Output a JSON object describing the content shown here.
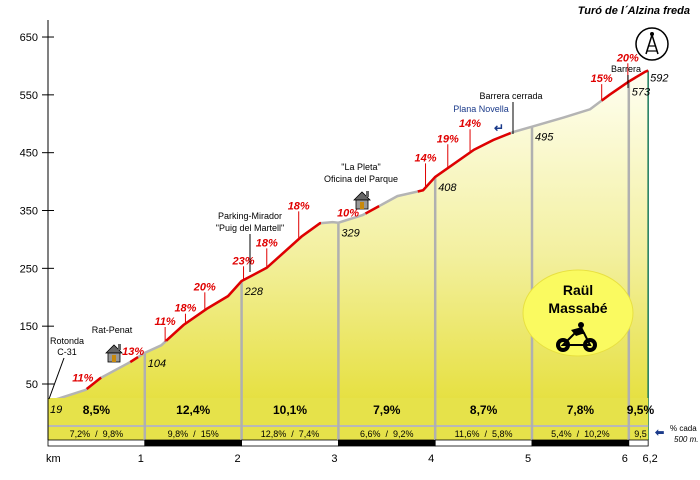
{
  "chart_data": {
    "type": "area",
    "title": "Turó de l´Alzina freda",
    "xlabel": "km",
    "ylabel": "",
    "xlim": [
      0,
      6.2
    ],
    "ylim": [
      50,
      650
    ],
    "y_ticks": [
      50,
      150,
      250,
      350,
      450,
      550,
      650
    ],
    "x_ticks": [
      {
        "v": 1,
        "label": "1"
      },
      {
        "v": 2,
        "label": "2"
      },
      {
        "v": 3,
        "label": "3"
      },
      {
        "v": 4,
        "label": "4"
      },
      {
        "v": 5,
        "label": "5"
      },
      {
        "v": 6,
        "label": "6"
      },
      {
        "v": 6.2,
        "label": "6,2"
      }
    ],
    "profile": [
      [
        0,
        19
      ],
      [
        0.39,
        40
      ],
      [
        0.54,
        60
      ],
      [
        0.85,
        88
      ],
      [
        1.0,
        104
      ],
      [
        1.17,
        117
      ],
      [
        1.4,
        152
      ],
      [
        1.64,
        180
      ],
      [
        1.86,
        202
      ],
      [
        2.0,
        228
      ],
      [
        2.26,
        251
      ],
      [
        2.62,
        305
      ],
      [
        2.81,
        328
      ],
      [
        2.94,
        330
      ],
      [
        3.0,
        329
      ],
      [
        3.25,
        342
      ],
      [
        3.61,
        375
      ],
      [
        3.875,
        385
      ],
      [
        4.0,
        408
      ],
      [
        4.4,
        455
      ],
      [
        4.6,
        472
      ],
      [
        4.81,
        486
      ],
      [
        5.0,
        495
      ],
      [
        5.33,
        511
      ],
      [
        5.6,
        525
      ],
      [
        5.8,
        550
      ],
      [
        6.0,
        573
      ],
      [
        6.17,
        590
      ],
      [
        6.2,
        592
      ]
    ],
    "steep_sections": [
      [
        0.4,
        0.55
      ],
      [
        0.85,
        0.93
      ],
      [
        1.22,
        2.82
      ],
      [
        3.28,
        3.42
      ],
      [
        3.82,
        4.78
      ],
      [
        5.72,
        6.2
      ]
    ],
    "km_elevations": [
      {
        "km": 0,
        "elev": "19"
      },
      {
        "km": 1,
        "elev": "104"
      },
      {
        "km": 2,
        "elev": "228"
      },
      {
        "km": 3,
        "elev": "329"
      },
      {
        "km": 4,
        "elev": "408"
      },
      {
        "km": 5,
        "elev": "495"
      },
      {
        "km": 6,
        "elev": "573"
      },
      {
        "km": 6.2,
        "elev": "592"
      }
    ],
    "grade_labels": [
      {
        "km": 0.36,
        "elev": 54,
        "label": "11%"
      },
      {
        "km": 0.88,
        "elev": 100,
        "label": "13%"
      },
      {
        "km": 1.21,
        "elev": 152,
        "label": "11%"
      },
      {
        "km": 1.42,
        "elev": 175,
        "label": "18%"
      },
      {
        "km": 1.62,
        "elev": 212,
        "label": "20%"
      },
      {
        "km": 2.02,
        "elev": 257,
        "label": "23%"
      },
      {
        "km": 2.26,
        "elev": 288,
        "label": "18%"
      },
      {
        "km": 2.59,
        "elev": 352,
        "label": "18%"
      },
      {
        "km": 3.1,
        "elev": 340,
        "label": "10%"
      },
      {
        "km": 3.9,
        "elev": 435,
        "label": "14%"
      },
      {
        "km": 4.13,
        "elev": 468,
        "label": "19%"
      },
      {
        "km": 4.36,
        "elev": 494,
        "label": "14%"
      },
      {
        "km": 5.72,
        "elev": 572,
        "label": "15%"
      },
      {
        "km": 5.99,
        "elev": 608,
        "label": "20%"
      }
    ],
    "segments": [
      {
        "from": 0,
        "to": 1,
        "avg": "8,5%",
        "halves": "7,2%  /  9,8%"
      },
      {
        "from": 1,
        "to": 2,
        "avg": "12,4%",
        "halves": "9,8%  /  15%"
      },
      {
        "from": 2,
        "to": 3,
        "avg": "10,1%",
        "halves": "12,8%  /  7,4%"
      },
      {
        "from": 3,
        "to": 4,
        "avg": "7,9%",
        "halves": "6,6%  /  9,2%"
      },
      {
        "from": 4,
        "to": 5,
        "avg": "8,7%",
        "halves": "11,6%  /  5,8%"
      },
      {
        "from": 5,
        "to": 6,
        "avg": "7,8%",
        "halves": "5,4%  /  10,2%"
      },
      {
        "from": 6,
        "to": 6.2,
        "avg": "9,5%",
        "halves": "9,5"
      }
    ],
    "half_km_note": [
      "% cada",
      "500 m."
    ],
    "annotations": {
      "rotonda": [
        "Rotonda",
        "C-31"
      ],
      "rat_penat": "Rat-Penat",
      "parking": [
        "Parking-Mirador",
        "\"Puig del Martell\""
      ],
      "pleta": [
        "\"La Pleta\"",
        "Oficina del Parque"
      ],
      "plana_novella": "Plana Novella",
      "barrera_cerrada": "Barrera cerrada",
      "barrera": "Barrera"
    },
    "author": [
      "Raül",
      "Massabé"
    ]
  },
  "colors": {
    "profile": "#b4b4b4",
    "steep": "#e00000",
    "band": "#e6e24a",
    "blue": "#1a3a8a"
  }
}
